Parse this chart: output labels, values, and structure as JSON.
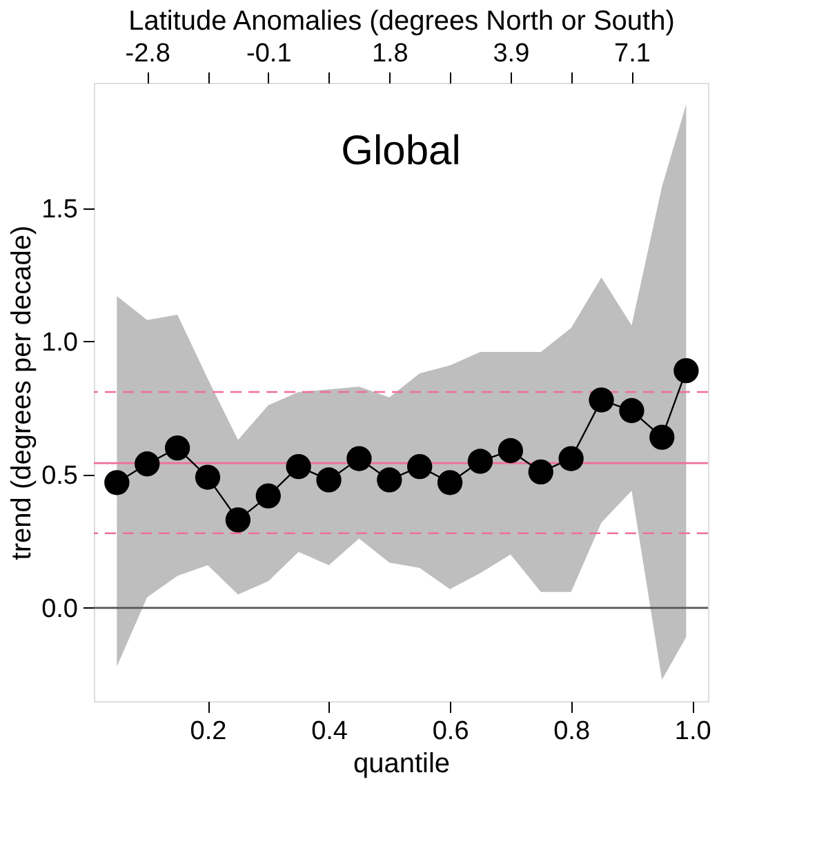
{
  "chart_data": {
    "type": "line",
    "title": "Global",
    "xlabel": "quantile",
    "ylabel": "trend (degrees per decade)",
    "x2label": "Latitude Anomalies (degrees North or South)",
    "x": [
      0.05,
      0.1,
      0.15,
      0.2,
      0.25,
      0.3,
      0.35,
      0.4,
      0.45,
      0.5,
      0.55,
      0.6,
      0.65,
      0.7,
      0.75,
      0.8,
      0.85,
      0.9,
      0.95,
      0.99
    ],
    "series": [
      {
        "color": "#000000",
        "values": [
          0.47,
          0.54,
          0.6,
          0.49,
          0.33,
          0.42,
          0.53,
          0.48,
          0.56,
          0.48,
          0.53,
          0.47,
          0.55,
          0.59,
          0.51,
          0.56,
          0.78,
          0.74,
          0.64,
          0.89
        ],
        "lower": [
          -0.22,
          0.04,
          0.12,
          0.16,
          0.05,
          0.1,
          0.21,
          0.16,
          0.26,
          0.17,
          0.15,
          0.07,
          0.13,
          0.2,
          0.06,
          0.06,
          0.32,
          0.44,
          -0.27,
          -0.11
        ],
        "upper": [
          1.17,
          1.08,
          1.1,
          0.86,
          0.63,
          0.76,
          0.81,
          0.82,
          0.83,
          0.79,
          0.88,
          0.91,
          0.96,
          0.96,
          0.96,
          1.05,
          1.24,
          1.06,
          1.58,
          1.89
        ]
      }
    ],
    "xlim": [
      0.012,
      1.026
    ],
    "ylim": [
      -0.35,
      1.97
    ],
    "xticks": [
      {
        "value": 0.2,
        "label": "0.2"
      },
      {
        "value": 0.4,
        "label": "0.4"
      },
      {
        "value": 0.6,
        "label": "0.6"
      },
      {
        "value": 0.8,
        "label": "0.8"
      },
      {
        "value": 1.0,
        "label": "1.0"
      }
    ],
    "yticks": [
      {
        "value": 0,
        "label": "0.0"
      },
      {
        "value": 0.5,
        "label": "0.5"
      },
      {
        "value": 1.0,
        "label": "1.0"
      },
      {
        "value": 1.5,
        "label": "1.5"
      }
    ],
    "annotations": [
      {
        "text": "-2.8",
        "x": 0.1
      },
      {
        "text": "-0.1",
        "x": 0.3
      },
      {
        "text": "1.8",
        "x": 0.5
      },
      {
        "text": "3.9",
        "x": 0.7
      },
      {
        "text": "7.1",
        "x": 0.9
      }
    ],
    "ref_lines": [
      {
        "axis": "y",
        "value": 0,
        "color": "#555555",
        "line_style": "solid"
      },
      {
        "axis": "y",
        "value": 0.543,
        "color": "#f06e9a",
        "line_style": "solid"
      },
      {
        "axis": "y",
        "value": 0.81,
        "color": "#f06e9a",
        "line_style": "dashed"
      },
      {
        "axis": "y",
        "value": 0.28,
        "color": "#f06e9a",
        "line_style": "dashed"
      }
    ],
    "marker": "circle",
    "line_style": "solid",
    "grid": false
  }
}
